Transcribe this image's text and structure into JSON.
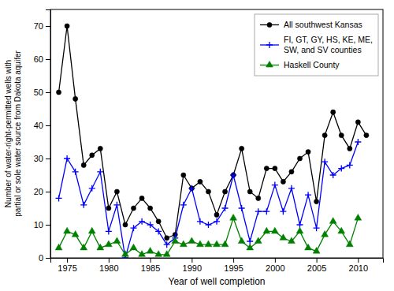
{
  "chart_data": {
    "type": "line",
    "xlabel": "Year of well completion",
    "ylabel": "Number of water-right-permitted wells with\npartial or sole water source from Dakota aquifer",
    "x": [
      1974,
      1975,
      1976,
      1977,
      1978,
      1979,
      1980,
      1981,
      1982,
      1983,
      1984,
      1985,
      1986,
      1987,
      1988,
      1989,
      1990,
      1991,
      1992,
      1993,
      1994,
      1995,
      1996,
      1997,
      1998,
      1999,
      2000,
      2001,
      2002,
      2003,
      2004,
      2005,
      2006,
      2007,
      2008,
      2009,
      2010,
      2011
    ],
    "series": [
      {
        "name": "All southwest Kansas",
        "color": "#000000",
        "marker": "circle",
        "values": [
          50,
          70,
          48,
          28,
          31,
          33,
          15,
          20,
          10,
          15,
          18,
          15,
          11,
          6,
          7,
          25,
          21,
          23,
          20,
          13,
          20,
          25,
          33,
          20,
          18,
          27,
          27,
          23,
          26,
          30,
          32,
          17,
          37,
          44,
          37,
          33,
          41,
          37
        ]
      },
      {
        "name": "FI, GT, GY, HS, KE, ME,\nSW, and SV counties",
        "color": "#0000ff",
        "marker": "plus",
        "values": [
          18,
          30,
          26,
          16,
          21,
          26,
          8,
          16,
          0,
          9,
          11,
          10,
          8,
          4,
          6,
          16,
          21,
          11,
          10,
          11,
          15,
          25,
          15,
          5,
          14,
          14,
          22,
          14,
          21,
          10,
          19,
          9,
          29,
          25,
          27,
          28,
          35,
          null
        ]
      },
      {
        "name": "Haskell County",
        "color": "#008000",
        "marker": "triangle",
        "values": [
          3,
          8,
          7,
          3,
          8,
          3,
          4,
          5,
          1,
          3,
          1,
          2,
          1,
          1,
          5,
          4,
          5,
          4,
          4,
          4,
          4,
          12,
          5,
          3,
          5,
          8,
          8,
          6,
          5,
          8,
          3,
          2,
          7,
          11,
          8,
          4,
          12,
          null
        ]
      }
    ],
    "xlim": [
      1973,
      2013
    ],
    "ylim": [
      0,
      75
    ],
    "xticks": [
      1975,
      1980,
      1985,
      1990,
      1995,
      2000,
      2005,
      2010
    ],
    "yticks": [
      0,
      10,
      20,
      30,
      40,
      50,
      60,
      70
    ],
    "grid": false,
    "legend": "upper right"
  }
}
